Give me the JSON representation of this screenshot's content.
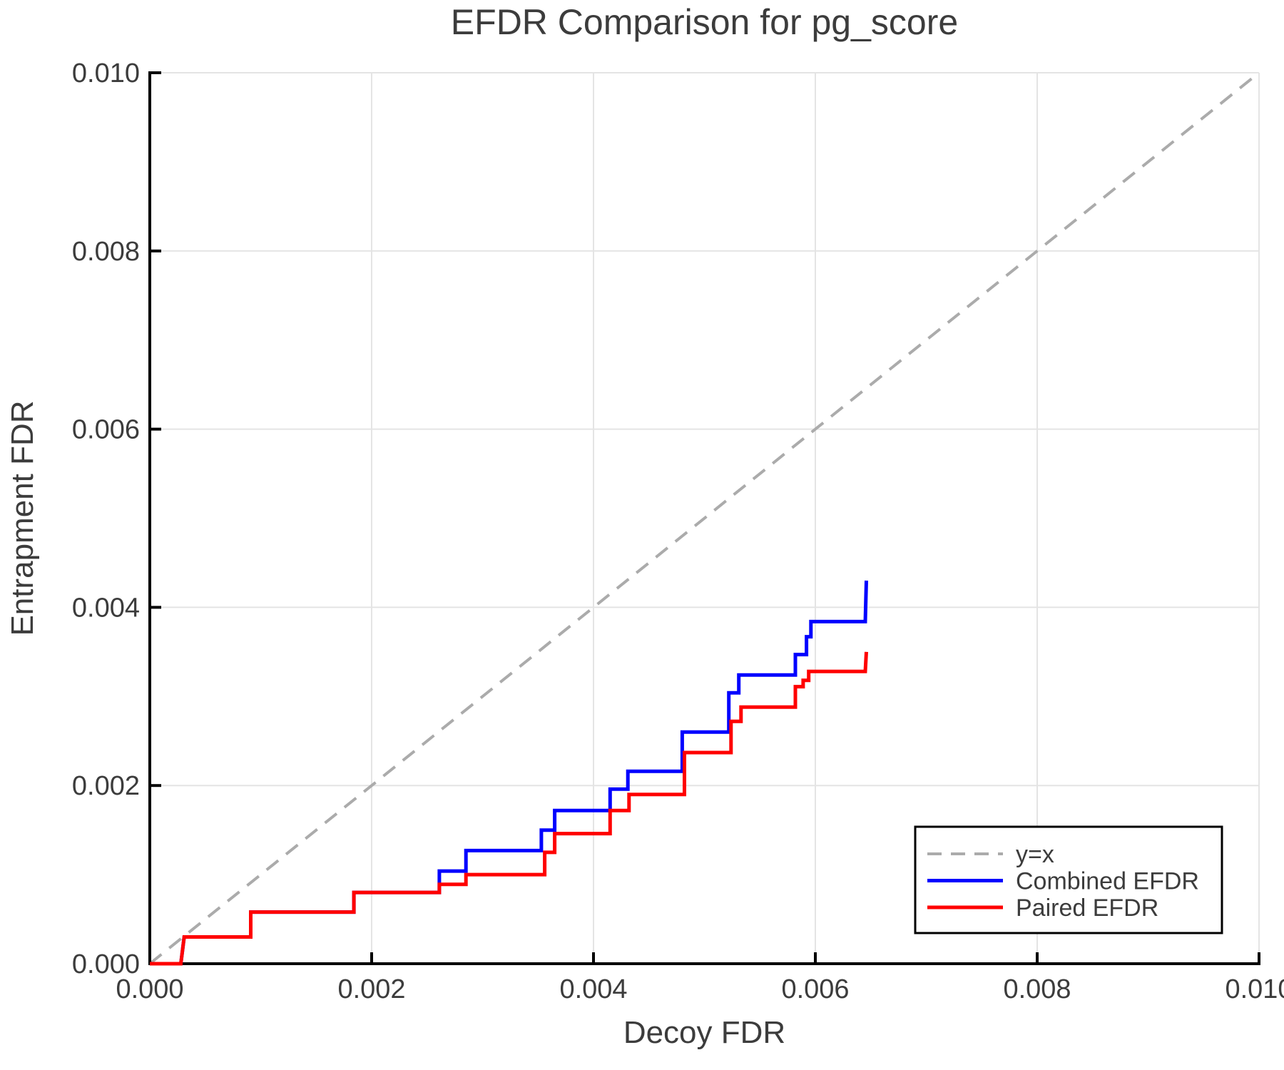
{
  "chart_data": {
    "type": "line",
    "title": "EFDR Comparison for pg_score",
    "xlabel": "Decoy FDR",
    "ylabel": "Entrapment FDR",
    "xlim": [
      0.0,
      0.01
    ],
    "ylim": [
      0.0,
      0.01
    ],
    "grid": true,
    "xticks": {
      "values": [
        0.0,
        0.002,
        0.004,
        0.006,
        0.008,
        0.01
      ],
      "labels": [
        "0.000",
        "0.002",
        "0.004",
        "0.006",
        "0.008",
        "0.010"
      ]
    },
    "yticks": {
      "values": [
        0.0,
        0.002,
        0.004,
        0.006,
        0.008,
        0.01
      ],
      "labels": [
        "0.000",
        "0.002",
        "0.004",
        "0.006",
        "0.008",
        "0.010"
      ]
    },
    "colors": {
      "background": "#ffffff",
      "grid": "#e4e4e4",
      "spine": "#000000",
      "text": "#3c3c3c",
      "identity": "#ababab",
      "combined": "#0000ff",
      "paired": "#ff0000"
    },
    "identity_line": {
      "label": "y=x",
      "from": [
        0.0,
        0.0
      ],
      "to": [
        0.01,
        0.01
      ],
      "dashed": true
    },
    "legend": {
      "position": "lower right",
      "entries": [
        {
          "label": "y=x",
          "color": "#ababab",
          "dashed": true
        },
        {
          "label": "Combined EFDR",
          "color": "#0000ff",
          "dashed": false
        },
        {
          "label": "Paired EFDR",
          "color": "#ff0000",
          "dashed": false
        }
      ]
    },
    "series": [
      {
        "name": "Combined EFDR",
        "color": "#0000ff",
        "points": [
          [
            0.0,
            0.0
          ],
          [
            0.00028,
            0.0
          ],
          [
            0.00031,
            0.0003
          ],
          [
            0.00091,
            0.0003
          ],
          [
            0.00091,
            0.00058
          ],
          [
            0.00184,
            0.00058
          ],
          [
            0.00184,
            0.0008
          ],
          [
            0.00261,
            0.0008
          ],
          [
            0.00261,
            0.00104
          ],
          [
            0.00285,
            0.00104
          ],
          [
            0.00285,
            0.00127
          ],
          [
            0.00353,
            0.00127
          ],
          [
            0.00353,
            0.0015
          ],
          [
            0.00365,
            0.0015
          ],
          [
            0.00365,
            0.00172
          ],
          [
            0.00415,
            0.00172
          ],
          [
            0.00415,
            0.00196
          ],
          [
            0.00431,
            0.00196
          ],
          [
            0.00431,
            0.00216
          ],
          [
            0.0048,
            0.00216
          ],
          [
            0.0048,
            0.0026
          ],
          [
            0.00522,
            0.0026
          ],
          [
            0.00522,
            0.00304
          ],
          [
            0.00531,
            0.00304
          ],
          [
            0.00531,
            0.00324
          ],
          [
            0.00582,
            0.00324
          ],
          [
            0.00582,
            0.00347
          ],
          [
            0.00592,
            0.00347
          ],
          [
            0.00592,
            0.00367
          ],
          [
            0.00596,
            0.00367
          ],
          [
            0.00596,
            0.00384
          ],
          [
            0.00645,
            0.00384
          ],
          [
            0.00646,
            0.0043
          ]
        ]
      },
      {
        "name": "Paired EFDR",
        "color": "#ff0000",
        "points": [
          [
            0.0,
            0.0
          ],
          [
            0.00028,
            0.0
          ],
          [
            0.00031,
            0.0003
          ],
          [
            0.00091,
            0.0003
          ],
          [
            0.00091,
            0.00058
          ],
          [
            0.00184,
            0.00058
          ],
          [
            0.00184,
            0.0008
          ],
          [
            0.00261,
            0.0008
          ],
          [
            0.00261,
            0.00089
          ],
          [
            0.00285,
            0.00089
          ],
          [
            0.00285,
            0.001
          ],
          [
            0.00356,
            0.001
          ],
          [
            0.00356,
            0.00125
          ],
          [
            0.00365,
            0.00125
          ],
          [
            0.00365,
            0.00146
          ],
          [
            0.00415,
            0.00146
          ],
          [
            0.00415,
            0.00172
          ],
          [
            0.00432,
            0.00172
          ],
          [
            0.00432,
            0.0019
          ],
          [
            0.00482,
            0.0019
          ],
          [
            0.00482,
            0.00237
          ],
          [
            0.00524,
            0.00237
          ],
          [
            0.00524,
            0.00272
          ],
          [
            0.00533,
            0.00272
          ],
          [
            0.00533,
            0.00288
          ],
          [
            0.00582,
            0.00288
          ],
          [
            0.00582,
            0.00311
          ],
          [
            0.00589,
            0.00311
          ],
          [
            0.00589,
            0.00318
          ],
          [
            0.00594,
            0.00318
          ],
          [
            0.00594,
            0.00328
          ],
          [
            0.00645,
            0.00328
          ],
          [
            0.00646,
            0.0035
          ]
        ]
      }
    ]
  }
}
